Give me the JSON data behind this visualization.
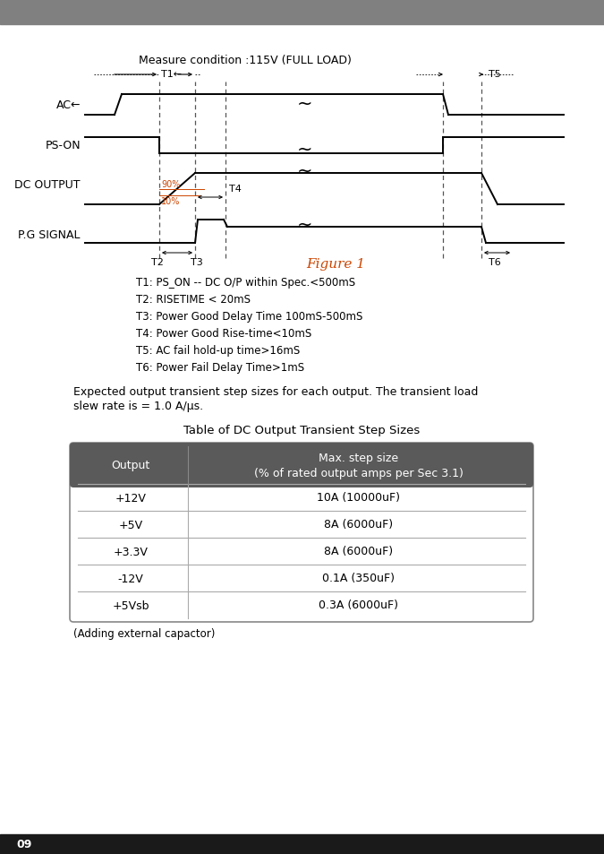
{
  "header_color": "#808080",
  "background_color": "#ffffff",
  "measure_condition": "Measure condition :115V (FULL LOAD)",
  "figure_label": "Figure 1",
  "legend_lines_plain": [
    "T1: PS_ON -- DC O/P within Spec.<500mS",
    "T2: RISETIME < 20mS",
    "T3: Power Good Delay Time 100mS-500mS",
    "T4: Power Good Rise-time<10mS",
    "T5: AC fail hold-up time>16mS",
    "T6: Power Fail Delay Time>1mS"
  ],
  "table_title": "Table of DC Output Transient Step Sizes",
  "table_header_col1": "Output",
  "table_header_col2": "Max. step size\n(% of rated output amps per Sec 3.1)",
  "table_rows": [
    [
      "+12V",
      "10A (10000uF)"
    ],
    [
      "+5V",
      "8A (6000uF)"
    ],
    [
      "+3.3V",
      "8A (6000uF)"
    ],
    [
      "-12V",
      "0.1A (350uF)"
    ],
    [
      "+5Vsb",
      "0.3A (6000uF)"
    ]
  ],
  "table_header_color": "#5a5a5a",
  "table_line_color": "#555555",
  "footer_text": "09",
  "footer_bg": "#1a1a1a",
  "transient_text1": "Expected output transient step sizes for each output. The transient load",
  "transient_text2": "slew rate is = 1.0 A/μs.",
  "adding_text": "(Adding external capactor)"
}
